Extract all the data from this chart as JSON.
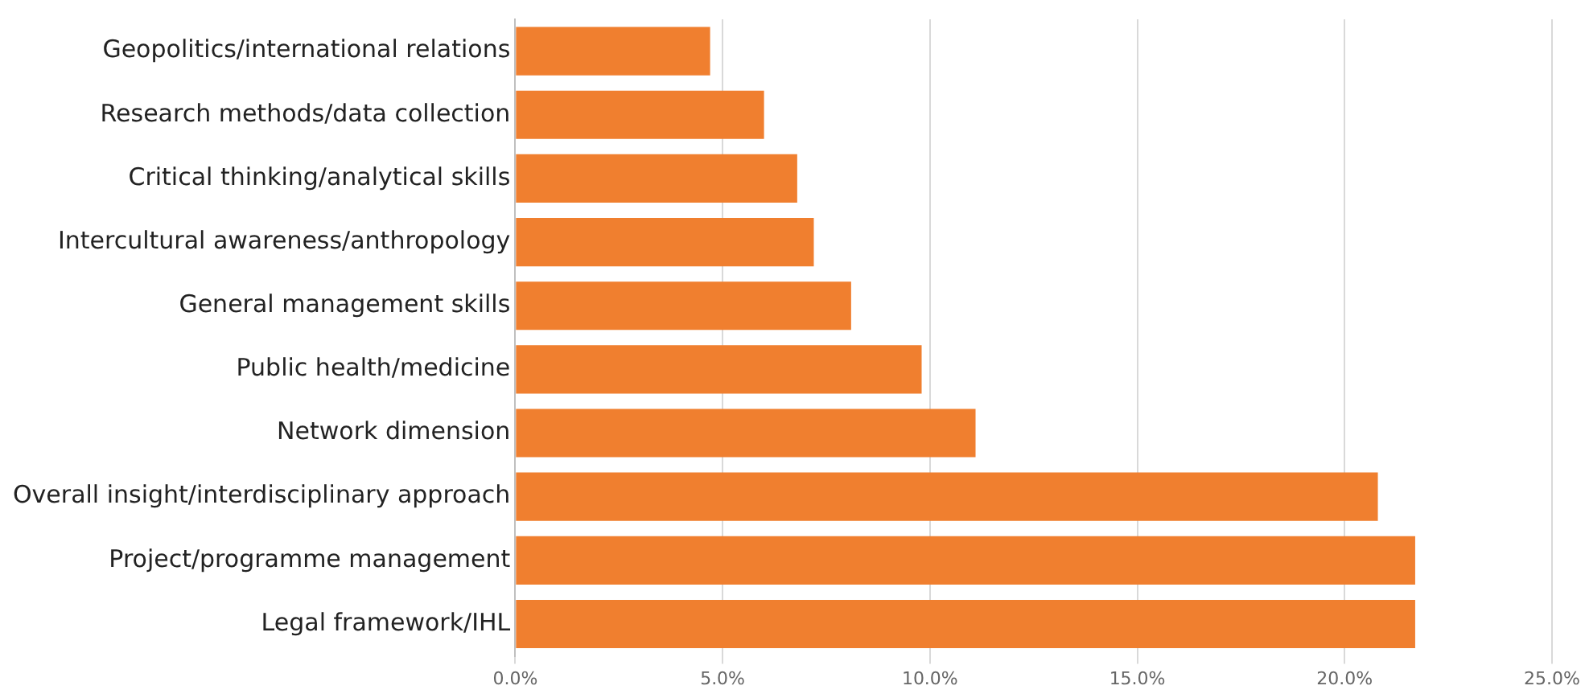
{
  "chart_data": {
    "type": "bar",
    "orientation": "horizontal",
    "categories": [
      "Geopolitics/international relations",
      "Research methods/data collection",
      "Critical thinking/analytical skills",
      "Intercultural awareness/anthropology",
      "General management skills",
      "Public health/medicine",
      "Network dimension",
      "Overall insight/interdisciplinary approach",
      "Project/programme management",
      "Legal framework/IHL"
    ],
    "values": [
      4.7,
      6.0,
      6.8,
      7.2,
      8.1,
      9.8,
      11.1,
      20.8,
      21.7,
      21.7
    ],
    "color": "#f07f2f",
    "xlim": [
      0,
      25
    ],
    "xticks": [
      {
        "value": 0,
        "label": "0.0%"
      },
      {
        "value": 5,
        "label": "5.0%"
      },
      {
        "value": 10,
        "label": "10.0%"
      },
      {
        "value": 15,
        "label": "15.0%"
      },
      {
        "value": 20,
        "label": "20.0%"
      },
      {
        "value": 25,
        "label": "25.0%"
      }
    ],
    "grid": "x",
    "legend": false
  }
}
